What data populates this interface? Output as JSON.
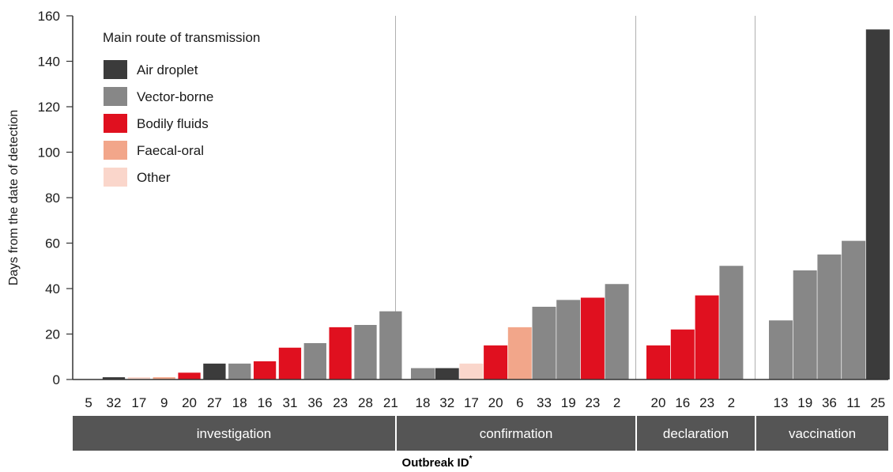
{
  "chart_data": {
    "type": "bar",
    "ylabel": "Days from the date of detection",
    "xlabel": "Outbreak ID",
    "xlabel_marker": "*",
    "ylim": [
      0,
      160
    ],
    "yticks": [
      "0",
      "20",
      "40",
      "60",
      "80",
      "100",
      "120",
      "140",
      "160"
    ],
    "legend": {
      "title": "Main route of transmission",
      "placement": "top-left",
      "entries": [
        {
          "key": "air",
          "label": "Air droplet",
          "color": "#3b3b3b"
        },
        {
          "key": "vector",
          "label": "Vector-borne",
          "color": "#878787"
        },
        {
          "key": "bodily",
          "label": "Bodily fluids",
          "color": "#e0101f"
        },
        {
          "key": "faecal",
          "label": "Faecal-oral",
          "color": "#f2a68a"
        },
        {
          "key": "other",
          "label": "Other",
          "color": "#fad6cb"
        }
      ]
    },
    "groups": [
      {
        "name": "investigation",
        "bars": [
          {
            "id": "5",
            "value": 0,
            "route": "air"
          },
          {
            "id": "32",
            "value": 1,
            "route": "air"
          },
          {
            "id": "17",
            "value": 1,
            "route": "other"
          },
          {
            "id": "9",
            "value": 1,
            "route": "faecal"
          },
          {
            "id": "20",
            "value": 3,
            "route": "bodily"
          },
          {
            "id": "27",
            "value": 7,
            "route": "air"
          },
          {
            "id": "18",
            "value": 7,
            "route": "vector"
          },
          {
            "id": "16",
            "value": 8,
            "route": "bodily"
          },
          {
            "id": "31",
            "value": 14,
            "route": "bodily"
          },
          {
            "id": "36",
            "value": 16,
            "route": "vector"
          },
          {
            "id": "23",
            "value": 23,
            "route": "bodily"
          },
          {
            "id": "28",
            "value": 24,
            "route": "vector"
          },
          {
            "id": "21",
            "value": 30,
            "route": "vector"
          }
        ]
      },
      {
        "name": "confirmation",
        "bars": [
          {
            "id": "18",
            "value": 5,
            "route": "vector"
          },
          {
            "id": "32",
            "value": 5,
            "route": "air"
          },
          {
            "id": "17",
            "value": 7,
            "route": "other"
          },
          {
            "id": "20",
            "value": 15,
            "route": "bodily"
          },
          {
            "id": "6",
            "value": 23,
            "route": "faecal"
          },
          {
            "id": "33",
            "value": 32,
            "route": "vector"
          },
          {
            "id": "19",
            "value": 35,
            "route": "vector"
          },
          {
            "id": "23",
            "value": 36,
            "route": "bodily"
          },
          {
            "id": "2",
            "value": 42,
            "route": "vector"
          }
        ]
      },
      {
        "name": "declaration",
        "bars": [
          {
            "id": "20",
            "value": 15,
            "route": "bodily"
          },
          {
            "id": "16",
            "value": 22,
            "route": "bodily"
          },
          {
            "id": "23",
            "value": 37,
            "route": "bodily"
          },
          {
            "id": "2",
            "value": 50,
            "route": "vector"
          }
        ]
      },
      {
        "name": "vaccination",
        "bars": [
          {
            "id": "13",
            "value": 26,
            "route": "vector"
          },
          {
            "id": "19",
            "value": 48,
            "route": "vector"
          },
          {
            "id": "36",
            "value": 55,
            "route": "vector"
          },
          {
            "id": "11",
            "value": 61,
            "route": "vector"
          },
          {
            "id": "25",
            "value": 154,
            "route": "air"
          }
        ]
      }
    ],
    "grid": {
      "horizontal": false,
      "group_separators": true
    },
    "colors": {
      "band": "#555555",
      "axis": "#333333",
      "separator": "#b0b0b0"
    }
  }
}
